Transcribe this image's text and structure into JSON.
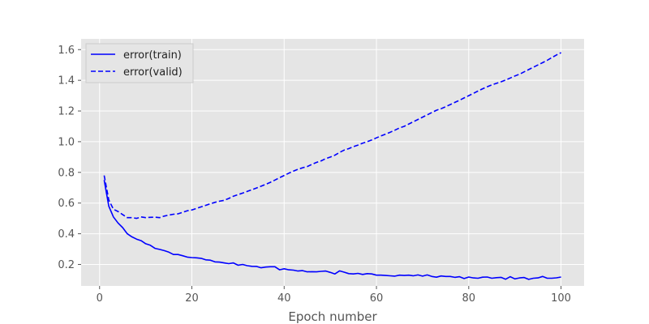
{
  "chart_data": {
    "type": "line",
    "title": "",
    "xlabel": "Epoch number",
    "ylabel": "",
    "xlim": [
      -4,
      105
    ],
    "ylim": [
      0.06,
      1.67
    ],
    "xticks": [
      0,
      20,
      40,
      60,
      80,
      100
    ],
    "yticks": [
      0.2,
      0.4,
      0.6,
      0.8,
      1.0,
      1.2,
      1.4,
      1.6
    ],
    "xtick_labels": [
      "0",
      "20",
      "40",
      "60",
      "80",
      "100"
    ],
    "ytick_labels": [
      "0.2",
      "0.4",
      "0.6",
      "0.8",
      "1.0",
      "1.2",
      "1.4",
      "1.6"
    ],
    "grid": true,
    "legend_position": "upper-left",
    "background": "#e5e5e5",
    "series": [
      {
        "name": "error(train)",
        "color": "#0000ff",
        "style": "solid",
        "x": [
          1,
          2,
          3,
          4,
          5,
          6,
          7,
          8,
          9,
          10,
          11,
          12,
          13,
          14,
          15,
          16,
          17,
          18,
          19,
          20,
          21,
          22,
          23,
          24,
          25,
          26,
          27,
          28,
          29,
          30,
          31,
          32,
          33,
          34,
          35,
          36,
          37,
          38,
          39,
          40,
          41,
          42,
          43,
          44,
          45,
          46,
          47,
          48,
          49,
          50,
          51,
          52,
          53,
          54,
          55,
          56,
          57,
          58,
          59,
          60,
          61,
          62,
          63,
          64,
          65,
          66,
          67,
          68,
          69,
          70,
          71,
          72,
          73,
          74,
          75,
          76,
          77,
          78,
          79,
          80,
          81,
          82,
          83,
          84,
          85,
          86,
          87,
          88,
          89,
          90,
          91,
          92,
          93,
          94,
          95,
          96,
          97,
          98,
          99,
          100
        ],
        "values": [
          0.75,
          0.58,
          0.51,
          0.47,
          0.44,
          0.4,
          0.38,
          0.365,
          0.355,
          0.335,
          0.325,
          0.305,
          0.298,
          0.29,
          0.28,
          0.265,
          0.265,
          0.257,
          0.248,
          0.245,
          0.243,
          0.24,
          0.23,
          0.228,
          0.217,
          0.215,
          0.21,
          0.205,
          0.21,
          0.195,
          0.2,
          0.192,
          0.188,
          0.187,
          0.178,
          0.183,
          0.185,
          0.185,
          0.165,
          0.172,
          0.165,
          0.163,
          0.157,
          0.16,
          0.152,
          0.153,
          0.152,
          0.155,
          0.157,
          0.148,
          0.138,
          0.158,
          0.15,
          0.14,
          0.138,
          0.142,
          0.135,
          0.14,
          0.138,
          0.13,
          0.13,
          0.128,
          0.126,
          0.124,
          0.13,
          0.128,
          0.13,
          0.126,
          0.132,
          0.124,
          0.132,
          0.122,
          0.117,
          0.125,
          0.122,
          0.122,
          0.116,
          0.12,
          0.108,
          0.118,
          0.112,
          0.11,
          0.117,
          0.118,
          0.11,
          0.114,
          0.116,
          0.104,
          0.12,
          0.106,
          0.112,
          0.115,
          0.103,
          0.11,
          0.112,
          0.122,
          0.11,
          0.11,
          0.113,
          0.118
        ]
      },
      {
        "name": "error(valid)",
        "color": "#0000ff",
        "style": "dashed",
        "x": [
          1,
          2,
          3,
          4,
          5,
          6,
          7,
          8,
          9,
          10,
          11,
          12,
          13,
          14,
          15,
          16,
          17,
          18,
          19,
          20,
          21,
          22,
          23,
          24,
          25,
          26,
          27,
          28,
          29,
          30,
          31,
          32,
          33,
          34,
          35,
          36,
          37,
          38,
          39,
          40,
          41,
          42,
          43,
          44,
          45,
          46,
          47,
          48,
          49,
          50,
          51,
          52,
          53,
          54,
          55,
          56,
          57,
          58,
          59,
          60,
          61,
          62,
          63,
          64,
          65,
          66,
          67,
          68,
          69,
          70,
          71,
          72,
          73,
          74,
          75,
          76,
          77,
          78,
          79,
          80,
          81,
          82,
          83,
          84,
          85,
          86,
          87,
          88,
          89,
          90,
          91,
          92,
          93,
          94,
          95,
          96,
          97,
          98,
          99,
          100
        ],
        "values": [
          0.78,
          0.62,
          0.56,
          0.545,
          0.525,
          0.505,
          0.505,
          0.5,
          0.51,
          0.505,
          0.507,
          0.508,
          0.505,
          0.515,
          0.522,
          0.527,
          0.53,
          0.54,
          0.55,
          0.555,
          0.565,
          0.575,
          0.585,
          0.595,
          0.605,
          0.612,
          0.618,
          0.63,
          0.645,
          0.655,
          0.665,
          0.676,
          0.687,
          0.698,
          0.71,
          0.722,
          0.735,
          0.75,
          0.765,
          0.78,
          0.795,
          0.808,
          0.82,
          0.83,
          0.838,
          0.852,
          0.865,
          0.875,
          0.89,
          0.9,
          0.912,
          0.93,
          0.945,
          0.955,
          0.968,
          0.978,
          0.99,
          1.0,
          1.012,
          1.025,
          1.038,
          1.05,
          1.062,
          1.075,
          1.09,
          1.1,
          1.115,
          1.13,
          1.145,
          1.16,
          1.175,
          1.19,
          1.205,
          1.215,
          1.228,
          1.242,
          1.256,
          1.27,
          1.285,
          1.3,
          1.315,
          1.33,
          1.345,
          1.358,
          1.37,
          1.38,
          1.39,
          1.402,
          1.415,
          1.428,
          1.44,
          1.455,
          1.47,
          1.485,
          1.5,
          1.515,
          1.53,
          1.548,
          1.565,
          1.58
        ]
      }
    ]
  }
}
